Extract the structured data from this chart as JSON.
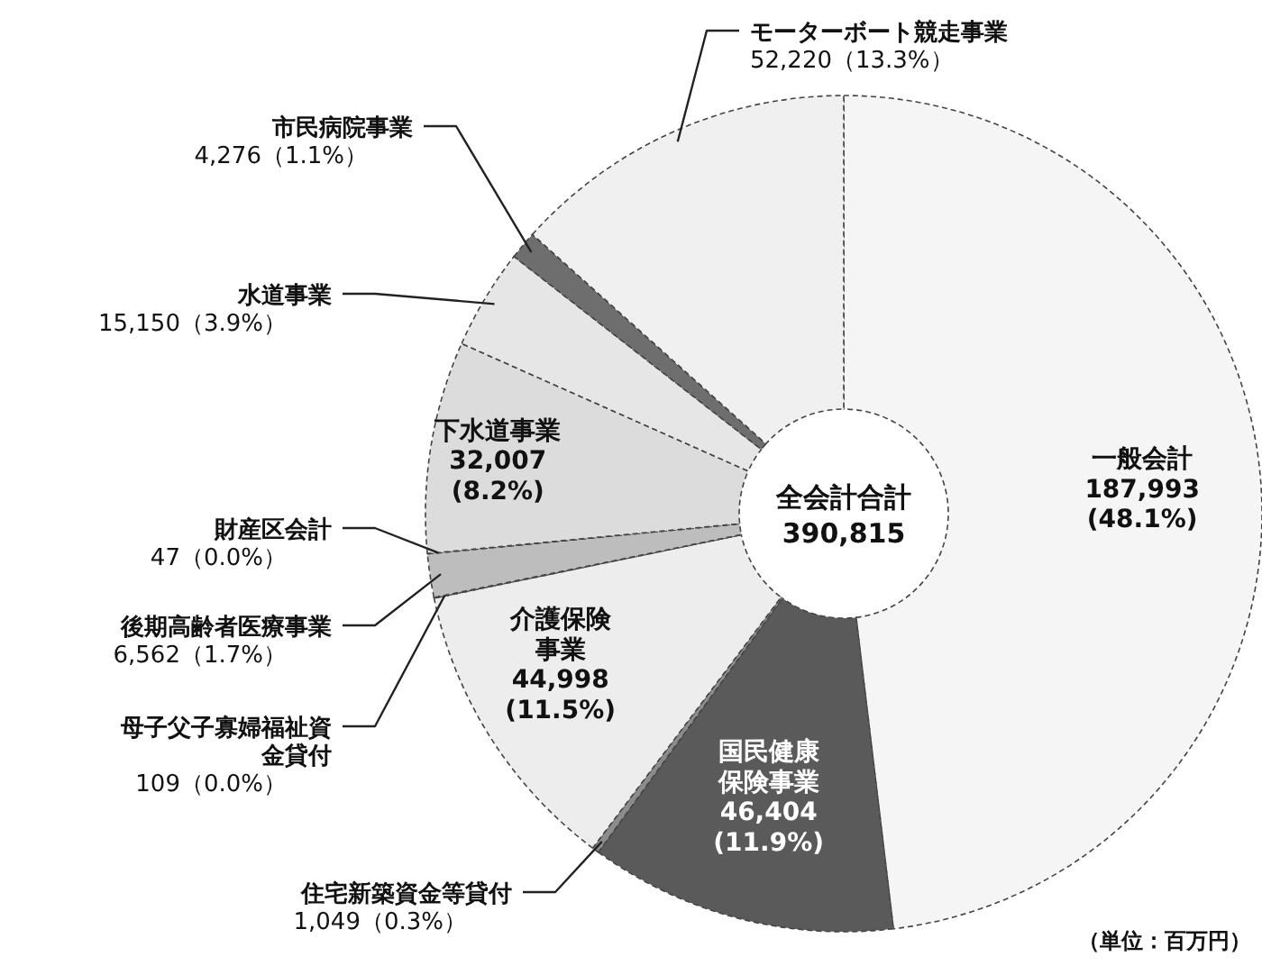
{
  "chart_data": {
    "type": "donut",
    "title": "全会計合計",
    "subtitle": "390,815",
    "categories": [
      "一般会計",
      "国民健康保険事業",
      "住宅新築資金等貸付",
      "介護保険事業",
      "母子父子寡婦福祉資金貸付",
      "後期高齢者医療事業",
      "財産区会計",
      "下水道事業",
      "水道事業",
      "市民病院事業",
      "モーターボート競走事業"
    ],
    "values": [
      187993,
      46404,
      1049,
      44998,
      109,
      6562,
      47,
      32007,
      15150,
      4276,
      52220
    ],
    "value_labels": [
      "187,993\n(48.1%)",
      "46,404\n(11.9%)",
      "1,049（0.3%）",
      "44,998\n(11.5%)",
      "109（0.0%）",
      "6,562（1.7%）",
      "47（0.0%）",
      "32,007\n(8.2%)",
      "15,150（3.9%）",
      "4,276（1.1%）",
      "52,220（13.3%）"
    ],
    "colors": [
      "#f5f5f5",
      "#5a5a5a",
      "#8c8c8c",
      "#ededed",
      "#808080",
      "#bdbdbd",
      "#707070",
      "#dcdcdc",
      "#e6e6e6",
      "#6e6e6e",
      "#f0f0f0"
    ],
    "annotations": [
      "（単位：百万円）"
    ]
  }
}
